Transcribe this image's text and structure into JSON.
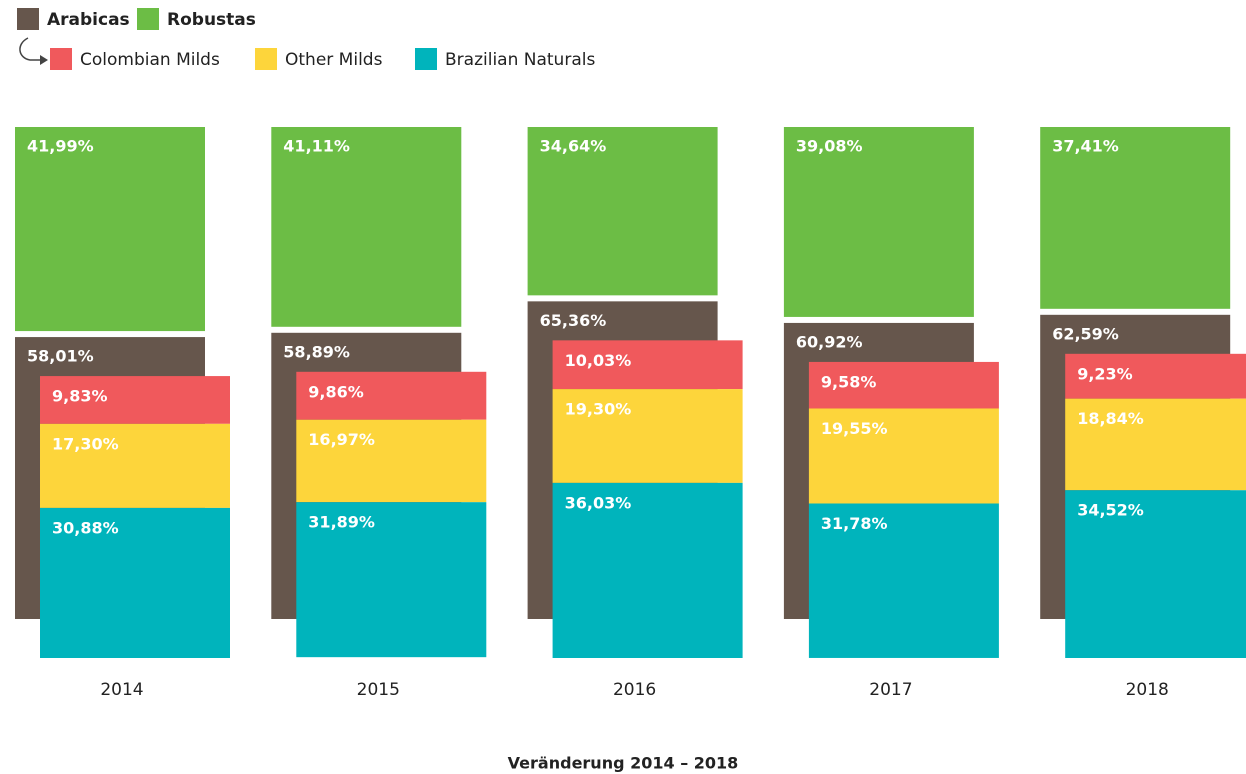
{
  "chart_data": {
    "type": "bar",
    "categories": [
      "2014",
      "2015",
      "2016",
      "2017",
      "2018"
    ],
    "series": [
      {
        "name": "Arabicas",
        "color": "#66564c",
        "values": [
          58.01,
          58.89,
          65.36,
          60.92,
          62.59
        ],
        "value_labels": [
          "58,01%",
          "58,89%",
          "65,36%",
          "60,92%",
          "62,59%"
        ]
      },
      {
        "name": "Robustas",
        "color": "#6cbd45",
        "values": [
          41.99,
          41.11,
          34.64,
          39.08,
          37.41
        ],
        "value_labels": [
          "41,99%",
          "41,11%",
          "34,64%",
          "39,08%",
          "37,41%"
        ]
      },
      {
        "name": "Colombian Milds",
        "color": "#f0595c",
        "values": [
          9.83,
          9.86,
          10.03,
          9.58,
          9.23
        ],
        "value_labels": [
          "9,83%",
          "9,86%",
          "10,03%",
          "9,58%",
          "9,23%"
        ]
      },
      {
        "name": "Other Milds",
        "color": "#fdd53b",
        "values": [
          17.3,
          16.97,
          19.3,
          19.55,
          18.84
        ],
        "value_labels": [
          "17,30%",
          "16,97%",
          "19,30%",
          "19,55%",
          "18,84%"
        ]
      },
      {
        "name": "Brazilian Naturals",
        "color": "#00b4bc",
        "values": [
          30.88,
          31.89,
          36.03,
          31.78,
          34.52
        ],
        "value_labels": [
          "30,88%",
          "31,89%",
          "36,03%",
          "31,78%",
          "34,52%"
        ]
      }
    ],
    "caption": "Veränderung 2014 – 2018"
  }
}
